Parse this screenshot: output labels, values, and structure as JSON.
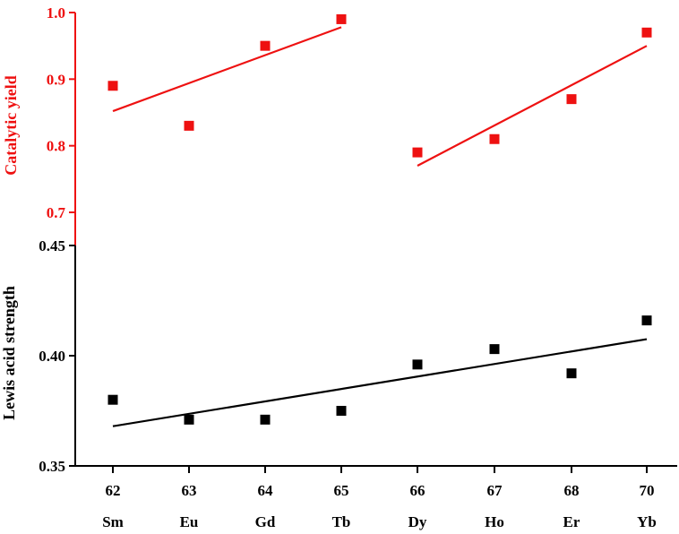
{
  "chart_data": {
    "type": "scatter",
    "title": "",
    "x": {
      "numbers": [
        "62",
        "63",
        "64",
        "65",
        "66",
        "67",
        "68",
        "70"
      ],
      "categories": [
        "Sm",
        "Eu",
        "Gd",
        "Tb",
        "Dy",
        "Ho",
        "Er",
        "Yb"
      ]
    },
    "top_panel": {
      "ylabel": "Catalytic yield",
      "ylim": [
        0.7,
        1.0
      ],
      "ticks": [
        "0.7",
        "0.8",
        "0.9",
        "1.0"
      ],
      "color": "#ee1111",
      "series": [
        {
          "name": "Catalytic yield",
          "values": [
            0.89,
            0.83,
            0.95,
            0.99,
            0.79,
            0.81,
            0.87,
            0.97
          ]
        }
      ],
      "fits": [
        {
          "x_start_index": 0,
          "x_end_index": 3,
          "y_start": 0.852,
          "y_end": 0.978
        },
        {
          "x_start_index": 4,
          "x_end_index": 7,
          "y_start": 0.77,
          "y_end": 0.95
        }
      ]
    },
    "bottom_panel": {
      "ylabel": "Lewis acid strength",
      "ylim": [
        0.35,
        0.45
      ],
      "ticks": [
        "0.35",
        "0.40",
        "0.45"
      ],
      "color": "#000000",
      "series": [
        {
          "name": "Lewis acid strength",
          "values": [
            0.38,
            0.371,
            0.371,
            0.375,
            0.396,
            0.403,
            0.392,
            0.416
          ]
        }
      ],
      "fits": [
        {
          "x_start_index": 0,
          "x_end_index": 7,
          "y_start": 0.368,
          "y_end": 0.4075
        }
      ]
    }
  }
}
